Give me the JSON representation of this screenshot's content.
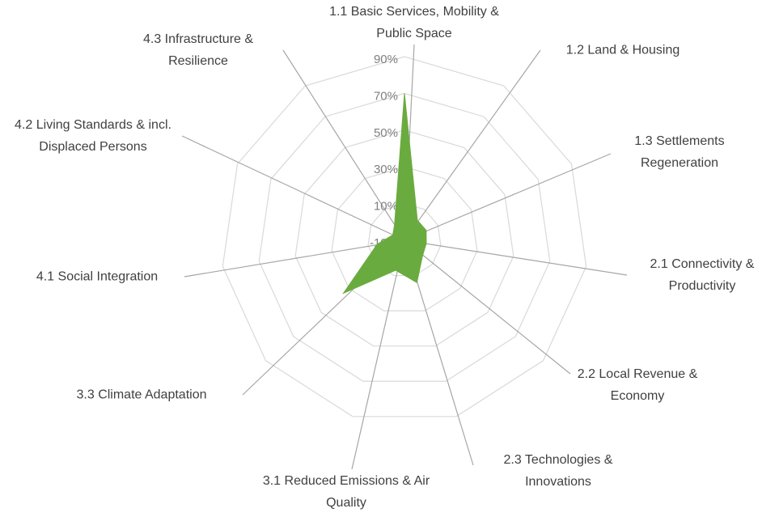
{
  "chart_data": {
    "type": "radar",
    "categories": [
      "1.1 Basic Services, Mobility & Public Space",
      "1.2 Land & Housing",
      "1.3 Settlements Regeneration",
      "2.1 Connectivity & Productivity",
      "2.2 Local Revenue & Economy",
      "2.3 Technologies & Innovations",
      "3.1 Reduced Emissions & Air Quality",
      "3.3 Climate Adaptation",
      "4.1 Social Integration",
      "4.2 Living Standards & incl. Displaced Persons",
      "4.3 Infrastructure & Resilience"
    ],
    "values": [
      70,
      3,
      3,
      2,
      3,
      14,
      7,
      34,
      5,
      -3,
      0
    ],
    "color": "#6aab3f",
    "ylim": [
      -10,
      90
    ],
    "yticks": [
      {
        "value": -10,
        "label": "-10%"
      },
      {
        "value": 10,
        "label": "10%"
      },
      {
        "value": 30,
        "label": "30%"
      },
      {
        "value": 50,
        "label": "50%"
      },
      {
        "value": 70,
        "label": "70%"
      },
      {
        "value": 90,
        "label": "90%"
      }
    ],
    "grid": true
  }
}
